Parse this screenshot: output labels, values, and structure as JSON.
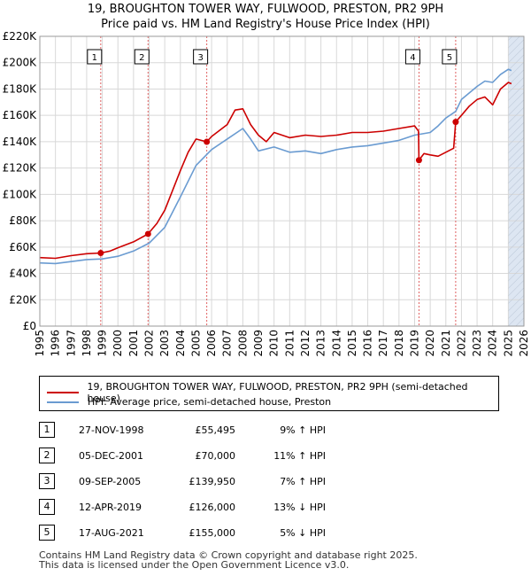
{
  "title_line1": "19, BROUGHTON TOWER WAY, FULWOOD, PRESTON, PR2 9PH",
  "title_line2": "Price paid vs. HM Land Registry's House Price Index (HPI)",
  "legend": {
    "property_label": "19, BROUGHTON TOWER WAY, FULWOOD, PRESTON, PR2 9PH (semi-detached house)",
    "hpi_label": "HPI: Average price, semi-detached house, Preston"
  },
  "colors": {
    "property": "#cc0000",
    "hpi": "#6a9bd1",
    "band": "#dde6f2",
    "marker_line": "#e06060"
  },
  "sales": [
    {
      "num": "1",
      "date": "27-NOV-1998",
      "price": "£55,495",
      "hpi": "9% ↑ HPI"
    },
    {
      "num": "2",
      "date": "05-DEC-2001",
      "price": "£70,000",
      "hpi": "11% ↑ HPI"
    },
    {
      "num": "3",
      "date": "09-SEP-2005",
      "price": "£139,950",
      "hpi": "7% ↑ HPI"
    },
    {
      "num": "4",
      "date": "12-APR-2019",
      "price": "£126,000",
      "hpi": "13% ↓ HPI"
    },
    {
      "num": "5",
      "date": "17-AUG-2021",
      "price": "£155,000",
      "hpi": "5% ↓ HPI"
    }
  ],
  "footer_line1": "Contains HM Land Registry data © Crown copyright and database right 2025.",
  "footer_line2": "This data is licensed under the Open Government Licence v3.0.",
  "chart_data": {
    "type": "line",
    "xlim": [
      1995,
      2026
    ],
    "ylim": [
      0,
      220000
    ],
    "x_ticks": [
      1995,
      1996,
      1997,
      1998,
      1999,
      2000,
      2001,
      2002,
      2003,
      2004,
      2005,
      2006,
      2007,
      2008,
      2009,
      2010,
      2011,
      2012,
      2013,
      2014,
      2015,
      2016,
      2017,
      2018,
      2019,
      2020,
      2021,
      2022,
      2023,
      2024,
      2025,
      2026
    ],
    "y_ticks": [
      0,
      20000,
      40000,
      60000,
      80000,
      100000,
      120000,
      140000,
      160000,
      180000,
      200000,
      220000
    ],
    "y_tick_labels": [
      "£0",
      "£20K",
      "£40K",
      "£60K",
      "£80K",
      "£100K",
      "£120K",
      "£140K",
      "£160K",
      "£180K",
      "£200K",
      "£220K"
    ],
    "highlight_band": [
      2025.0,
      2026.0
    ],
    "sale_markers": [
      {
        "num": "1",
        "x": 1998.9,
        "y": 55495
      },
      {
        "num": "2",
        "x": 2001.93,
        "y": 70000
      },
      {
        "num": "3",
        "x": 2005.69,
        "y": 139950
      },
      {
        "num": "4",
        "x": 2019.28,
        "y": 126000
      },
      {
        "num": "5",
        "x": 2021.63,
        "y": 155000
      }
    ],
    "series": [
      {
        "name": "19, BROUGHTON TOWER WAY, FULWOOD, PRESTON, PR2 9PH (semi-detached house)",
        "points": [
          [
            1995,
            52000
          ],
          [
            1996,
            51500
          ],
          [
            1997,
            53500
          ],
          [
            1998,
            55000
          ],
          [
            1998.9,
            55495
          ],
          [
            1999.5,
            57000
          ],
          [
            2000,
            59500
          ],
          [
            2001,
            64000
          ],
          [
            2001.93,
            70000
          ],
          [
            2002.5,
            78000
          ],
          [
            2003,
            88000
          ],
          [
            2003.5,
            103000
          ],
          [
            2004,
            118000
          ],
          [
            2004.5,
            132000
          ],
          [
            2005,
            142000
          ],
          [
            2005.69,
            139950
          ],
          [
            2006,
            144000
          ],
          [
            2007,
            153000
          ],
          [
            2007.5,
            164000
          ],
          [
            2008,
            165000
          ],
          [
            2008.5,
            153000
          ],
          [
            2009,
            145000
          ],
          [
            2009.5,
            140000
          ],
          [
            2010,
            147000
          ],
          [
            2011,
            143000
          ],
          [
            2012,
            145000
          ],
          [
            2013,
            144000
          ],
          [
            2014,
            145000
          ],
          [
            2015,
            147000
          ],
          [
            2016,
            147000
          ],
          [
            2017,
            148000
          ],
          [
            2018,
            150000
          ],
          [
            2019,
            152000
          ],
          [
            2019.25,
            148000
          ],
          [
            2019.28,
            126000
          ],
          [
            2019.6,
            131000
          ],
          [
            2020,
            130000
          ],
          [
            2020.5,
            129000
          ],
          [
            2021,
            132000
          ],
          [
            2021.5,
            135000
          ],
          [
            2021.63,
            155000
          ],
          [
            2022,
            160000
          ],
          [
            2022.5,
            167000
          ],
          [
            2023,
            172000
          ],
          [
            2023.5,
            174000
          ],
          [
            2024,
            168000
          ],
          [
            2024.5,
            180000
          ],
          [
            2025,
            185000
          ],
          [
            2025.2,
            184000
          ]
        ]
      },
      {
        "name": "HPI: Average price, semi-detached house, Preston",
        "points": [
          [
            1995,
            48000
          ],
          [
            1996,
            47500
          ],
          [
            1997,
            49000
          ],
          [
            1998,
            50500
          ],
          [
            1999,
            51000
          ],
          [
            2000,
            53000
          ],
          [
            2001,
            57000
          ],
          [
            2002,
            63000
          ],
          [
            2003,
            75000
          ],
          [
            2004,
            98000
          ],
          [
            2005,
            122000
          ],
          [
            2006,
            134000
          ],
          [
            2007,
            142000
          ],
          [
            2008,
            150000
          ],
          [
            2008.5,
            142000
          ],
          [
            2009,
            133000
          ],
          [
            2010,
            136000
          ],
          [
            2011,
            132000
          ],
          [
            2012,
            133000
          ],
          [
            2013,
            131000
          ],
          [
            2014,
            134000
          ],
          [
            2015,
            136000
          ],
          [
            2016,
            137000
          ],
          [
            2017,
            139000
          ],
          [
            2018,
            141000
          ],
          [
            2019,
            145000
          ],
          [
            2020,
            147000
          ],
          [
            2020.5,
            152000
          ],
          [
            2021,
            158000
          ],
          [
            2021.63,
            163000
          ],
          [
            2022,
            172000
          ],
          [
            2023,
            182000
          ],
          [
            2023.5,
            186000
          ],
          [
            2024,
            185000
          ],
          [
            2024.5,
            191000
          ],
          [
            2025,
            195000
          ],
          [
            2025.2,
            194000
          ]
        ]
      }
    ]
  }
}
